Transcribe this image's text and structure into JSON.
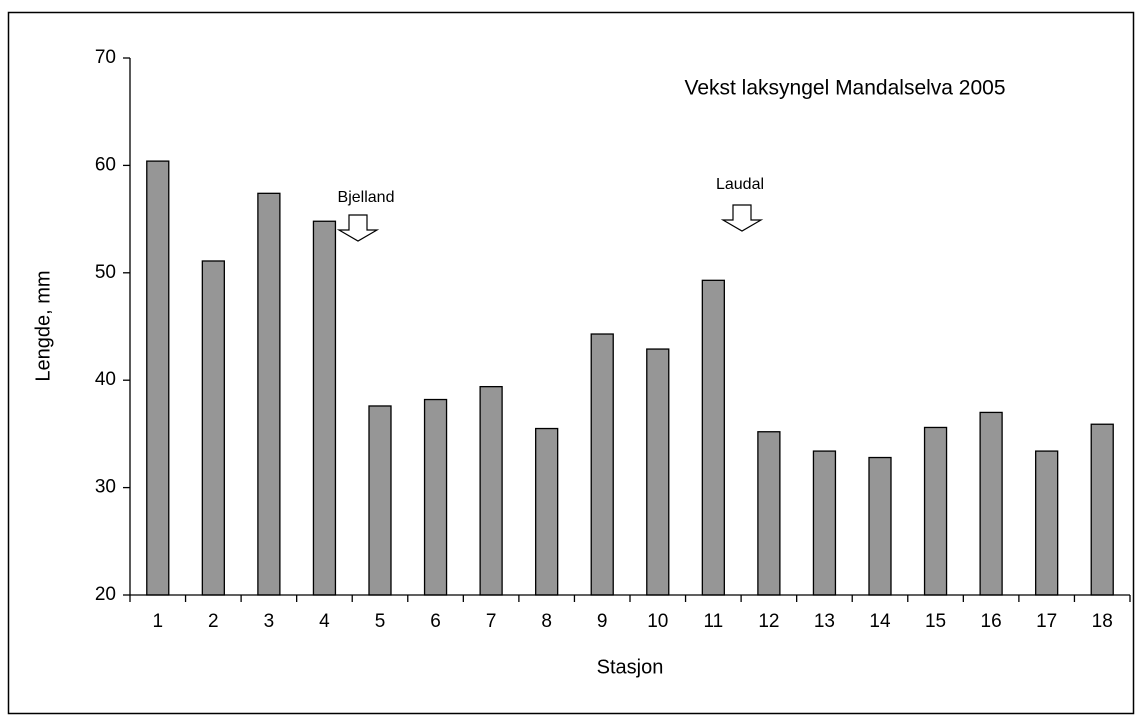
{
  "chart_data": {
    "type": "bar",
    "title": "Vekst laksyngel Mandalselva 2005",
    "x_label": "Stasjon",
    "y_label": "Lengde, mm",
    "categories": [
      "1",
      "2",
      "3",
      "4",
      "5",
      "6",
      "7",
      "8",
      "9",
      "10",
      "11",
      "12",
      "13",
      "14",
      "15",
      "16",
      "17",
      "18"
    ],
    "values": [
      60.4,
      51.1,
      57.4,
      54.8,
      37.6,
      38.2,
      39.4,
      35.5,
      44.3,
      42.9,
      49.3,
      35.2,
      33.4,
      32.8,
      35.6,
      37.0,
      33.4,
      35.9
    ],
    "color": "#969696",
    "ylim": [
      20,
      70
    ],
    "yticks": [
      20,
      30,
      40,
      50,
      60,
      70
    ],
    "grid": false,
    "annotations": [
      "Bjelland",
      "Laudal"
    ]
  }
}
